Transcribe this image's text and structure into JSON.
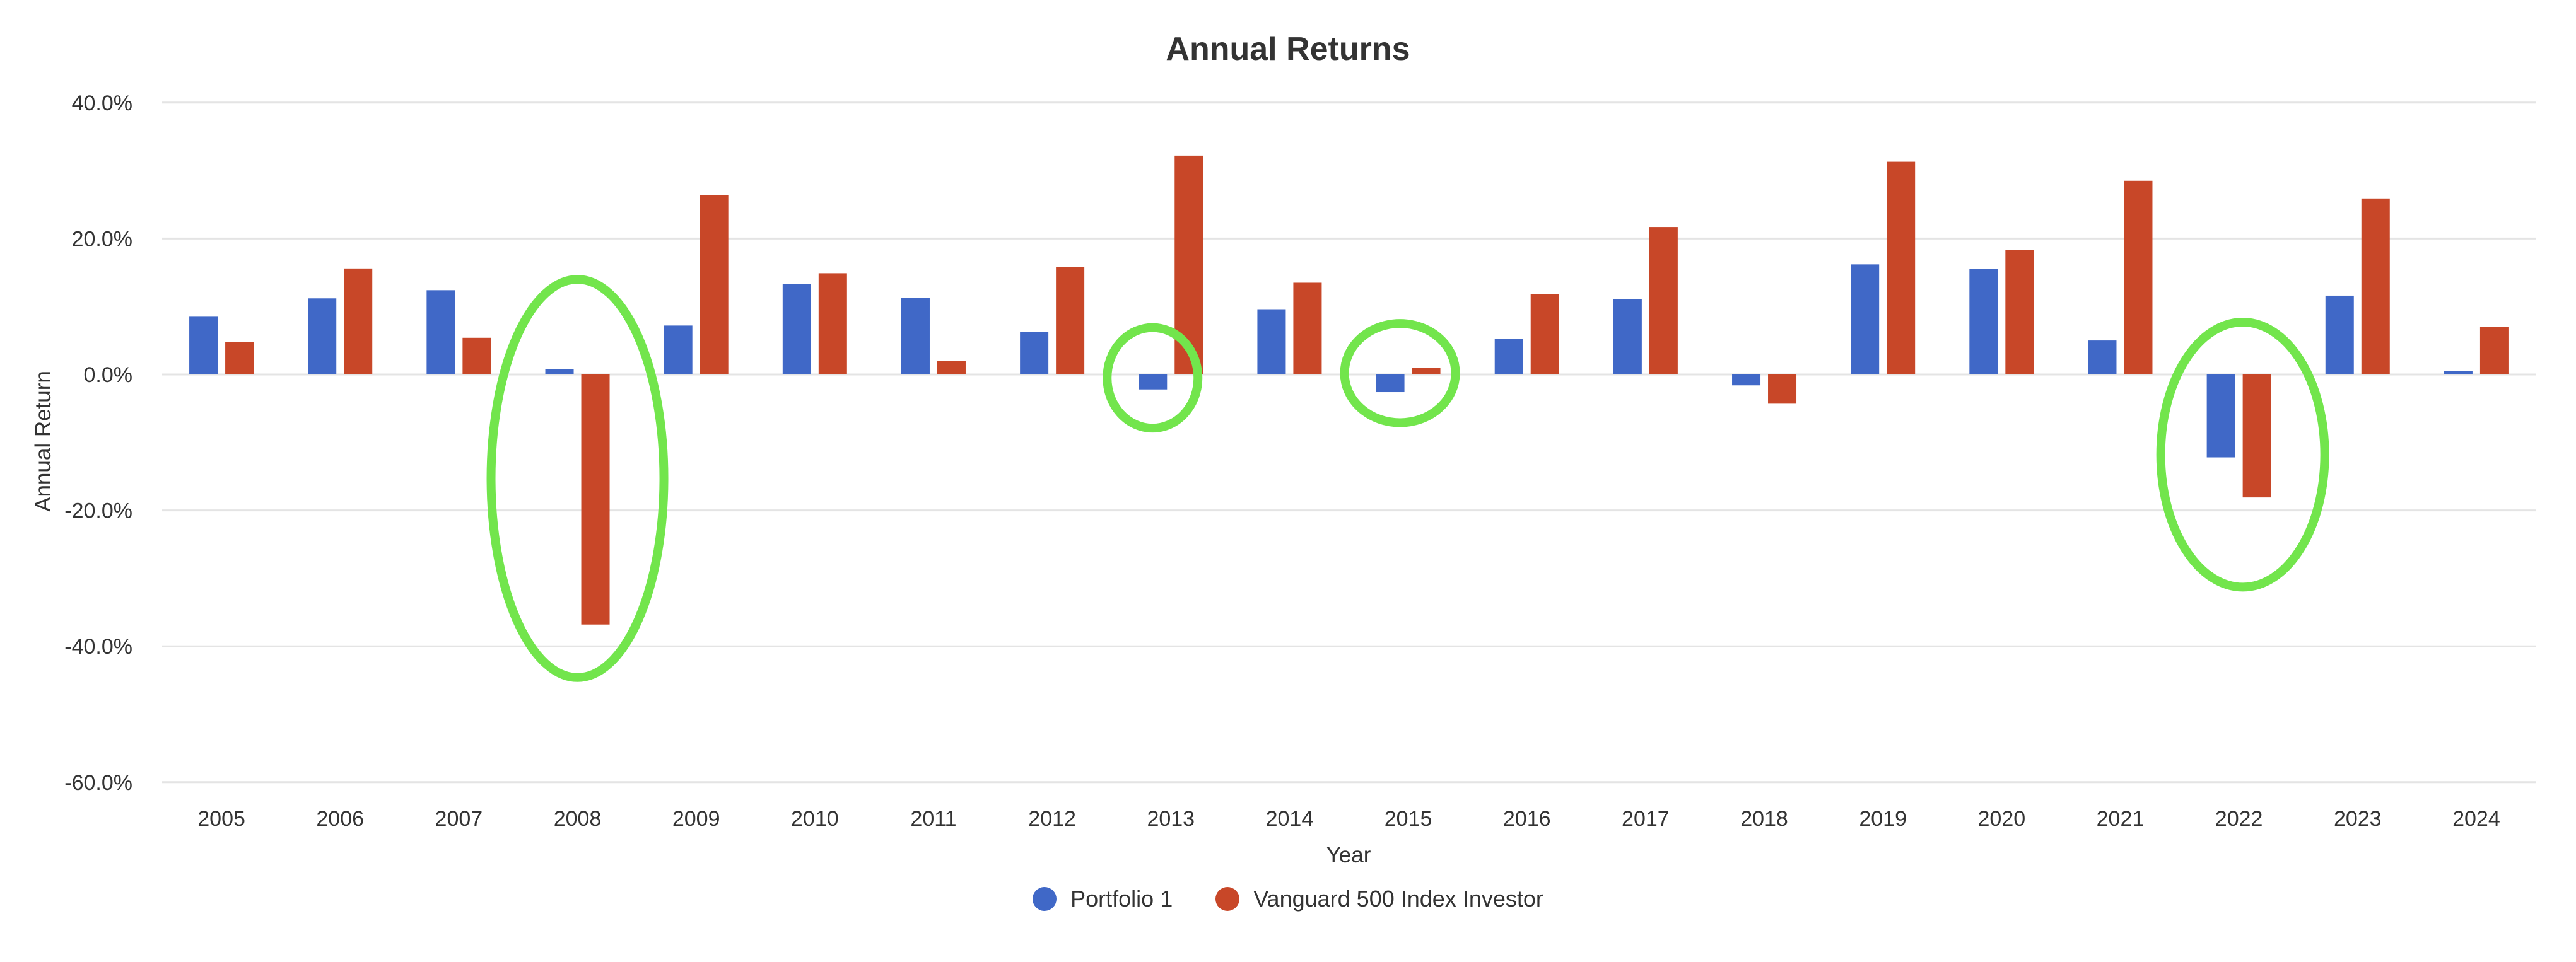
{
  "colors": {
    "background": "#FFFFFF",
    "grid": "#E4E4E4",
    "text": "#333333",
    "portfolio1": "#4068C7",
    "vanguard": "#C84728",
    "highlight": "#72E54C"
  },
  "legend": {
    "items": [
      {
        "label": "Portfolio 1",
        "color": "#4068C7"
      },
      {
        "label": "Vanguard 500 Index Investor",
        "color": "#C84728"
      }
    ]
  },
  "chart_data": {
    "type": "bar",
    "title": "Annual Returns",
    "xlabel": "Year",
    "ylabel": "Annual Return",
    "ylim": [
      -60,
      40
    ],
    "grid": true,
    "legend_position": "bottom",
    "y_ticks": [
      {
        "value": 40,
        "label": "40.0%"
      },
      {
        "value": 20,
        "label": "20.0%"
      },
      {
        "value": 0,
        "label": "0.0%"
      },
      {
        "value": -20,
        "label": "-20.0%"
      },
      {
        "value": -40,
        "label": "-40.0%"
      },
      {
        "value": -60,
        "label": "-60.0%"
      }
    ],
    "categories": [
      "2005",
      "2006",
      "2007",
      "2008",
      "2009",
      "2010",
      "2011",
      "2012",
      "2013",
      "2014",
      "2015",
      "2016",
      "2017",
      "2018",
      "2019",
      "2020",
      "2021",
      "2022",
      "2023",
      "2024"
    ],
    "series": [
      {
        "name": "Portfolio 1",
        "color": "#4068C7",
        "values": [
          8.5,
          11.2,
          12.4,
          0.8,
          7.2,
          13.3,
          11.3,
          6.3,
          -2.2,
          9.6,
          -2.6,
          5.2,
          11.1,
          -1.6,
          16.2,
          15.5,
          5.0,
          -12.2,
          11.6,
          0.5
        ]
      },
      {
        "name": "Vanguard 500 Index Investor",
        "color": "#C84728",
        "values": [
          4.8,
          15.6,
          5.4,
          -36.8,
          26.4,
          14.9,
          2.0,
          15.8,
          32.2,
          13.5,
          1.0,
          11.8,
          21.7,
          -4.3,
          31.3,
          18.3,
          28.5,
          -18.1,
          25.9,
          7.0
        ]
      }
    ],
    "annotations": [
      {
        "shape": "ellipse",
        "year": "2008",
        "dx": 0,
        "cy_pct": -15.3,
        "rx": 137,
        "ry_pct": 29.3,
        "color": "#72E54C"
      },
      {
        "shape": "ellipse",
        "year": "2013",
        "dx": -29,
        "cy_pct": -0.5,
        "rx": 72,
        "ry_pct": 7.4,
        "color": "#72E54C"
      },
      {
        "shape": "ellipse",
        "year": "2015",
        "dx": -13,
        "cy_pct": 0.2,
        "rx": 88,
        "ry_pct": 7.3,
        "color": "#72E54C"
      },
      {
        "shape": "ellipse",
        "year": "2022",
        "dx": 6,
        "cy_pct": -11.8,
        "rx": 130,
        "ry_pct": 19.5,
        "color": "#72E54C"
      }
    ]
  }
}
